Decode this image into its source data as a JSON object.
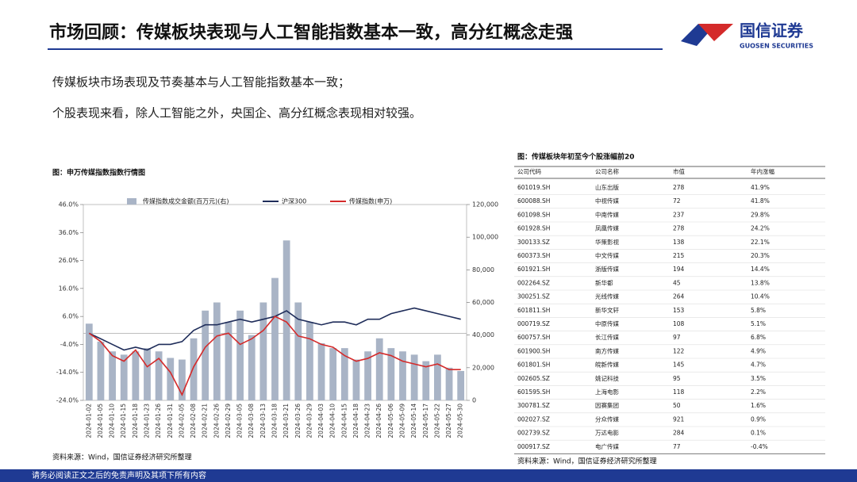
{
  "header": {
    "title": "市场回顾：传媒板块表现与人工智能指数基本一致，高分红概念走强",
    "logo_name": "国信证券",
    "logo_en": "GUOSEN SECURITIES"
  },
  "bullets": [
    "传媒板块市场表现及节奏基本与人工智能指数基本一致；",
    "个股表现来看，除人工智能之外，央国企、高分红概念表现相对较强。"
  ],
  "chart_caption": "图：申万传媒指数指数行情图",
  "chart_source": "资料来源：Wind，国信证券经济研究所整理",
  "chart_data": {
    "type": "bar-line",
    "categories": [
      "2024-01-02",
      "2024-01-05",
      "2024-01-10",
      "2024-01-15",
      "2024-01-18",
      "2024-01-23",
      "2024-01-26",
      "2024-01-31",
      "2024-02-05",
      "2024-02-08",
      "2024-02-21",
      "2024-02-26",
      "2024-02-29",
      "2024-03-05",
      "2024-03-08",
      "2024-03-13",
      "2024-03-18",
      "2024-03-21",
      "2024-03-26",
      "2024-03-29",
      "2024-04-03",
      "2024-04-10",
      "2024-04-15",
      "2024-04-18",
      "2024-04-23",
      "2024-04-26",
      "2024-05-06",
      "2024-05-09",
      "2024-05-14",
      "2024-05-17",
      "2024-05-22",
      "2024-05-27",
      "2024-05-30"
    ],
    "series": [
      {
        "name": "传媒指数成交金额(百万元)(右)",
        "type": "bar",
        "axis": "y2",
        "color": "#a9b4c6",
        "values": [
          47000,
          36000,
          30000,
          28000,
          30000,
          32000,
          30000,
          26000,
          25000,
          38000,
          55000,
          60000,
          48000,
          55000,
          40000,
          60000,
          75000,
          98000,
          60000,
          48000,
          35000,
          32000,
          32000,
          25000,
          30000,
          38000,
          32000,
          30000,
          28000,
          24000,
          28000,
          20000,
          18000
        ]
      },
      {
        "name": "沪深300",
        "type": "line",
        "color": "#1f2d5a",
        "values": [
          0,
          -2,
          -4,
          -6,
          -5,
          -6,
          -4,
          -4,
          -3,
          1,
          3,
          3,
          4,
          5,
          4,
          5,
          6,
          8,
          5,
          4,
          3,
          4,
          4,
          3,
          5,
          5,
          7,
          8,
          9,
          8,
          7,
          6,
          5
        ]
      },
      {
        "name": "传媒指数(申万)",
        "type": "line",
        "color": "#d42a2a",
        "values": [
          0,
          -3,
          -8,
          -10,
          -6,
          -12,
          -9,
          -14,
          -22,
          -12,
          -5,
          -1,
          0,
          -4,
          -2,
          1,
          6,
          4,
          -1,
          -2,
          -4,
          -5,
          -8,
          -10,
          -9,
          -7,
          -8,
          -10,
          -11,
          -12,
          -11,
          -13,
          -13
        ]
      }
    ],
    "ylim": [
      -24,
      46
    ],
    "yticks": [
      {
        "value": -24,
        "label": "-24.0%"
      },
      {
        "value": -14,
        "label": "-14.0%"
      },
      {
        "value": -4,
        "label": "-4.0%"
      },
      {
        "value": 6,
        "label": "6.0%"
      },
      {
        "value": 16,
        "label": "16.0%"
      },
      {
        "value": 26,
        "label": "26.0%"
      },
      {
        "value": 36,
        "label": "36.0%"
      },
      {
        "value": 46,
        "label": "46.0%"
      }
    ],
    "y2lim": [
      0,
      120000
    ],
    "y2ticks": [
      0,
      {
        "value": 20000,
        "label": "20,000"
      },
      {
        "value": 40000,
        "label": "40,000"
      },
      {
        "value": 60000,
        "label": "60,000"
      },
      {
        "value": 80000,
        "label": "80,000"
      },
      {
        "value": 100000,
        "label": "100,000"
      },
      {
        "value": 120000,
        "label": "120,000"
      }
    ]
  },
  "table": {
    "caption": "图：传媒板块年初至今个股涨幅前20",
    "columns": [
      "公司代码",
      "公司名称",
      "市值",
      "年内涨幅"
    ],
    "rows": [
      [
        "601019.SH",
        "山东出版",
        "278",
        "41.9%"
      ],
      [
        "600088.SH",
        "中视传媒",
        "72",
        "41.8%"
      ],
      [
        "601098.SH",
        "中南传媒",
        "237",
        "29.8%"
      ],
      [
        "601928.SH",
        "凤凰传媒",
        "278",
        "24.2%"
      ],
      [
        "300133.SZ",
        "华策影视",
        "138",
        "22.1%"
      ],
      [
        "600373.SH",
        "中文传媒",
        "215",
        "20.3%"
      ],
      [
        "601921.SH",
        "浙版传媒",
        "194",
        "14.4%"
      ],
      [
        "002264.SZ",
        "新华都",
        "45",
        "13.8%"
      ],
      [
        "300251.SZ",
        "光线传媒",
        "264",
        "10.4%"
      ],
      [
        "601811.SH",
        "新华文轩",
        "153",
        "5.8%"
      ],
      [
        "000719.SZ",
        "中原传媒",
        "108",
        "5.1%"
      ],
      [
        "600757.SH",
        "长江传媒",
        "97",
        "6.8%"
      ],
      [
        "601900.SH",
        "南方传媒",
        "122",
        "4.9%"
      ],
      [
        "601801.SH",
        "皖新传媒",
        "145",
        "4.7%"
      ],
      [
        "002605.SZ",
        "姚记科技",
        "95",
        "3.5%"
      ],
      [
        "601595.SH",
        "上海电影",
        "118",
        "2.2%"
      ],
      [
        "300781.SZ",
        "因赛集团",
        "50",
        "1.6%"
      ],
      [
        "002027.SZ",
        "分众传媒",
        "921",
        "0.9%"
      ],
      [
        "002739.SZ",
        "万达电影",
        "284",
        "0.1%"
      ],
      [
        "000917.SZ",
        "电广传媒",
        "77",
        "-0.4%"
      ]
    ],
    "source": "资料来源：Wind，国信证券经济研究所整理"
  },
  "footer": "请务必阅读正文之后的免责声明及其项下所有内容"
}
